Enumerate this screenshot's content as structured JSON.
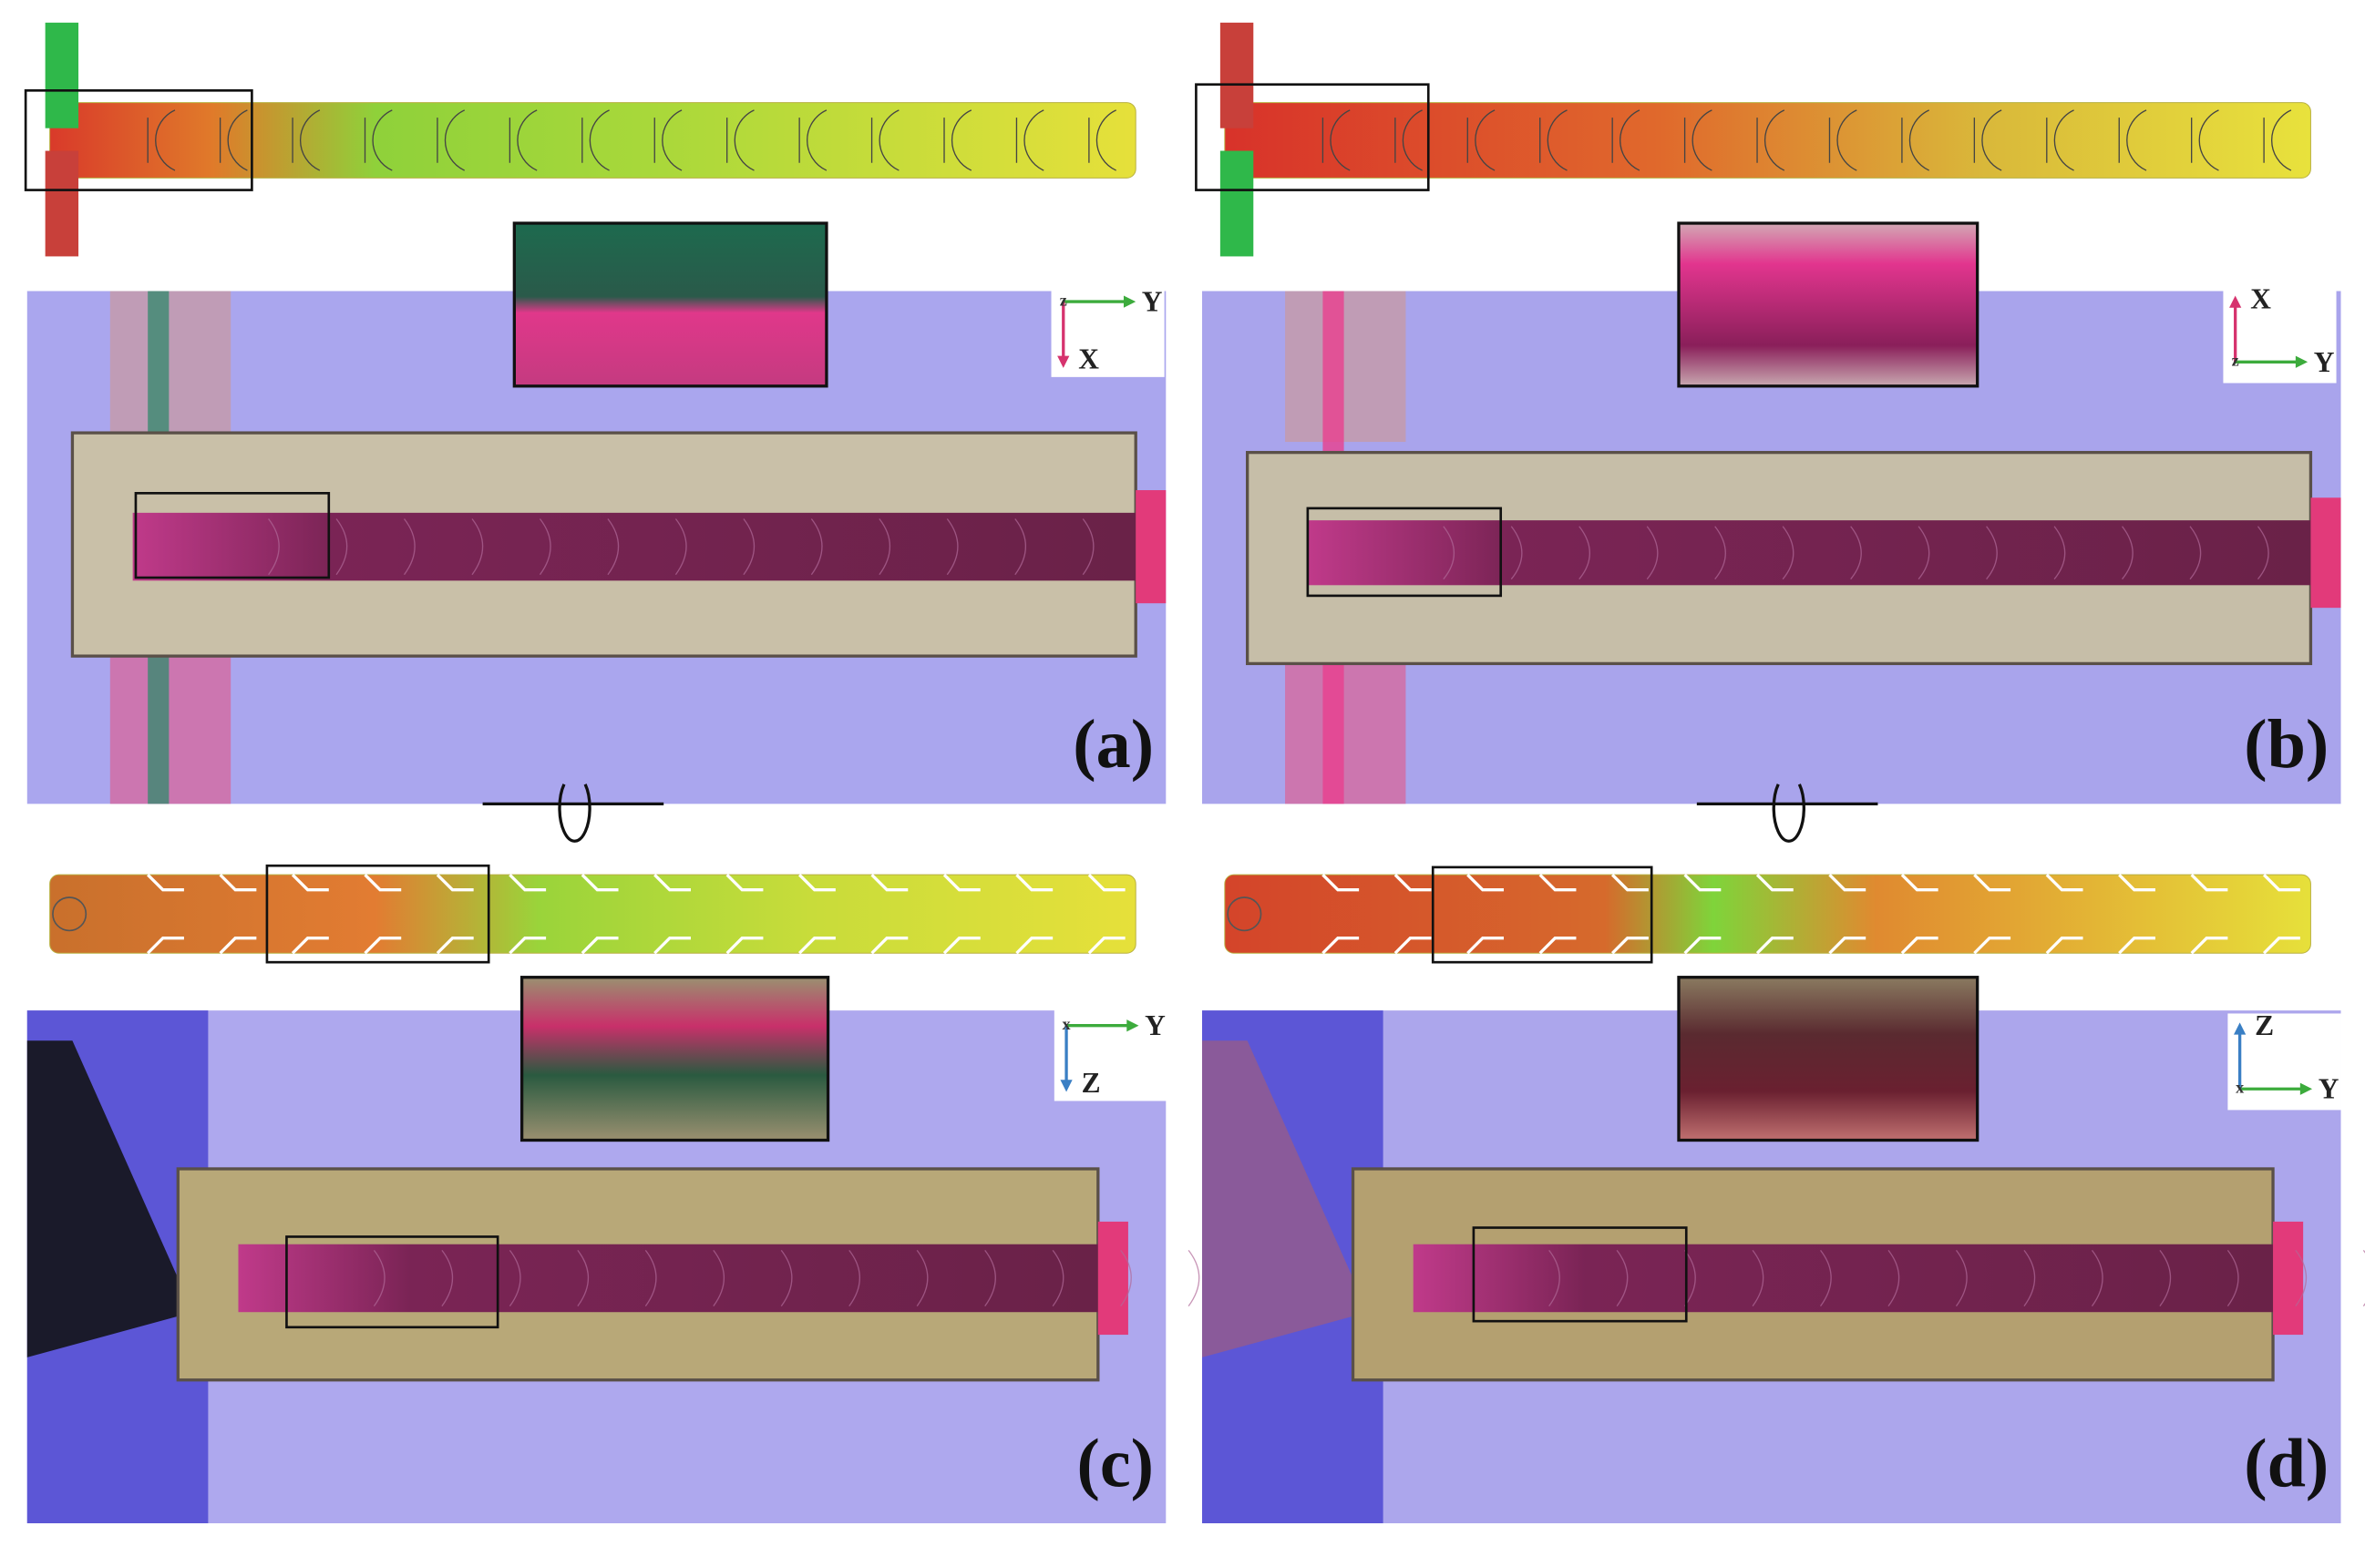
{
  "panels": [
    {
      "label": "(a)",
      "axes": {
        "origin": "z",
        "horizontal": "Y",
        "vertical": "X"
      }
    },
    {
      "label": "(b)",
      "axes": {
        "origin": "z",
        "horizontal": "Y",
        "vertical": "X"
      }
    },
    {
      "label": "(c)",
      "axes": {
        "origin": "x",
        "horizontal": "Y",
        "vertical": "Z"
      }
    },
    {
      "label": "(d)",
      "axes": {
        "origin": "x",
        "horizontal": "Y",
        "vertical": "Z"
      }
    }
  ]
}
